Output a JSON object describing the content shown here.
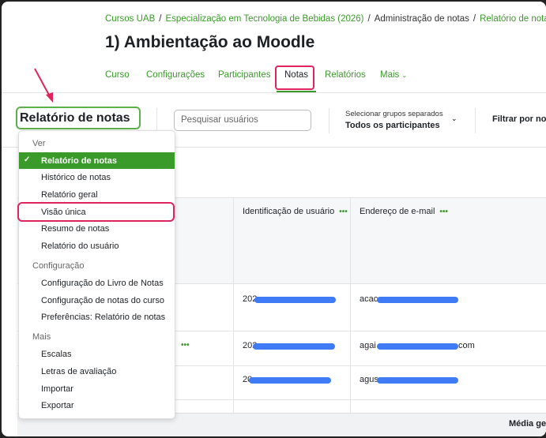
{
  "breadcrumb": [
    "Cursos UAB",
    "Especialização em Tecnologia de Bebidas (2026)",
    "Administração de notas",
    "Relatório de notas"
  ],
  "page_title": "1) Ambientação ao Moodle",
  "tabs": [
    "Curso",
    "Configurações",
    "Participantes",
    "Notas",
    "Relatórios",
    "Mais"
  ],
  "active_tab": "Notas",
  "report_selector": {
    "label": "Relatório de notas"
  },
  "search": {
    "placeholder": "Pesquisar usuários"
  },
  "groups": {
    "label": "Selecionar grupos separados",
    "value": "Todos os participantes"
  },
  "filter_label": "Filtrar por no",
  "menu": {
    "section_view": "Ver",
    "view_items": [
      "Relatório de notas",
      "Histórico de notas",
      "Relatório geral",
      "Visão única",
      "Resumo de notas",
      "Relatório do usuário"
    ],
    "section_config": "Configuração",
    "config_items": [
      "Configuração do Livro de Notas",
      "Configuração de notas do curso",
      "Preferências: Relatório de notas"
    ],
    "section_more": "Mais",
    "more_items": [
      "Escalas",
      "Letras de avaliação",
      "Importar",
      "Exportar"
    ],
    "selected": "Relatório de notas",
    "highlighted": "Visão única"
  },
  "table": {
    "headers": [
      "Identificação de usuário",
      "Endereço de e-mail"
    ],
    "rows": [
      {
        "id": "202",
        "email": "acac",
        "email_end": ""
      },
      {
        "id": "202",
        "email": "agai",
        "email_end": "com"
      },
      {
        "id": "20",
        "email": "agus",
        "email_end": ""
      }
    ]
  },
  "footer_label": "Média ge",
  "colors": {
    "accent": "#3a9a2a",
    "highlight": "#e0245e",
    "redaction": "#3f7bf5"
  }
}
